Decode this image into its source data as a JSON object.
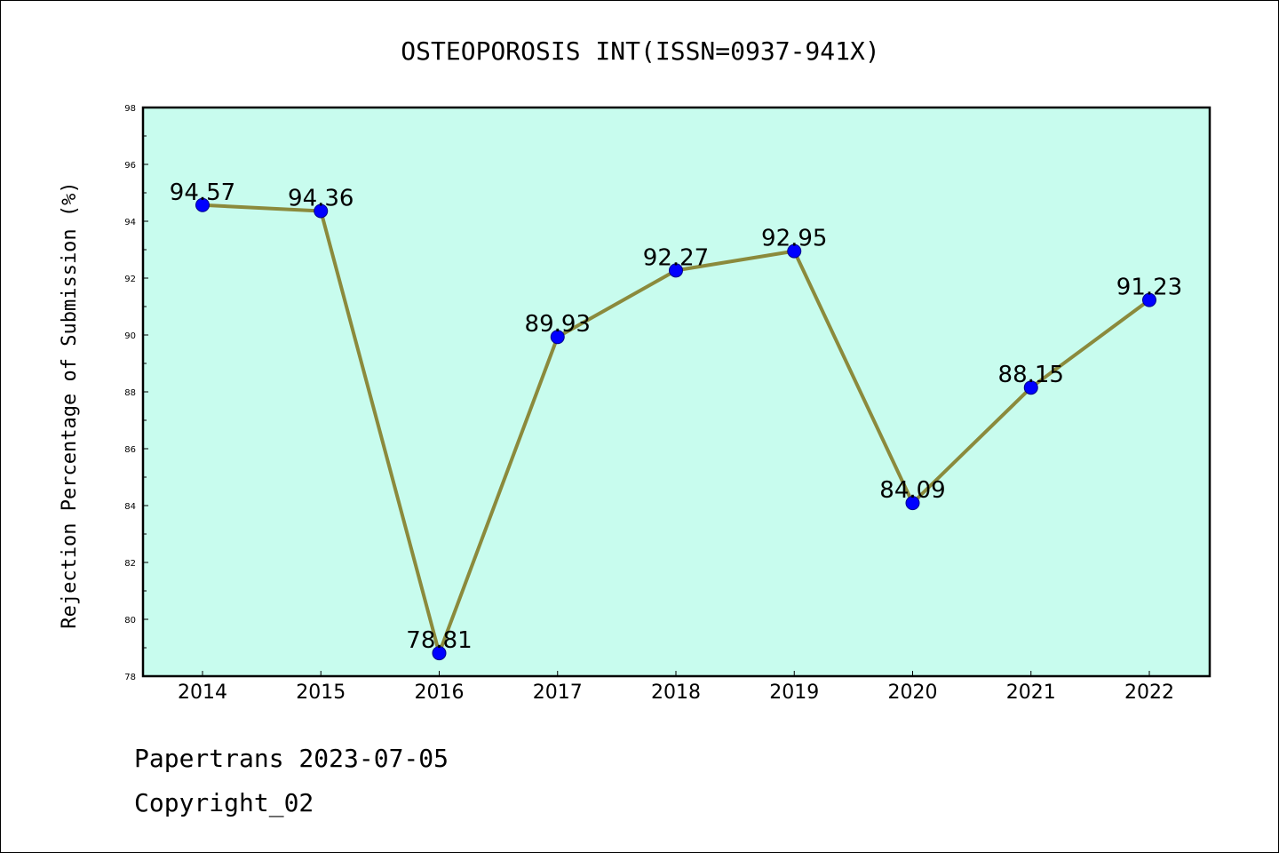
{
  "chart_data": {
    "type": "line",
    "title": "OSTEOPOROSIS INT(ISSN=0937-941X)",
    "xlabel": "",
    "ylabel": "Rejection Percentage of Submission (%)",
    "categories": [
      "2014",
      "2015",
      "2016",
      "2017",
      "2018",
      "2019",
      "2020",
      "2021",
      "2022"
    ],
    "series": [
      {
        "values": [
          94.57,
          94.36,
          78.81,
          89.93,
          92.27,
          92.95,
          84.09,
          88.15,
          91.23
        ]
      }
    ],
    "data_labels": [
      "94.57",
      "94.36",
      "78.81",
      "89.93",
      "92.27",
      "92.95",
      "84.09",
      "88.15",
      "91.23"
    ],
    "ylim": [
      78,
      98
    ],
    "yticks": [
      78,
      80,
      82,
      84,
      86,
      88,
      90,
      92,
      94,
      96,
      98
    ],
    "grid": false,
    "legend": "none",
    "colors": {
      "plot_background": "#c8fcee",
      "line": "#8b8a3c",
      "marker": "#0000ff",
      "marker_edge": "#00008b"
    }
  },
  "footer": {
    "line1": "Papertrans 2023-07-05",
    "line2": "Copyright_02"
  }
}
